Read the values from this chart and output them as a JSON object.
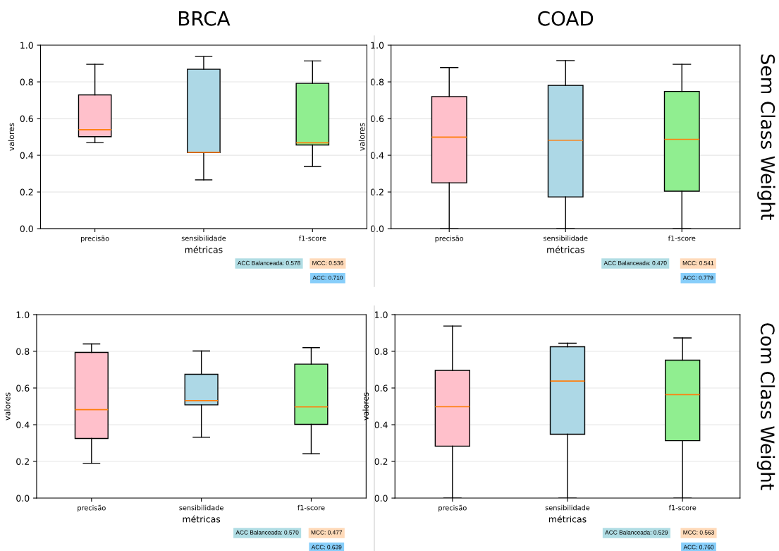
{
  "chart_data": [
    {
      "type": "box",
      "title": "BRCA",
      "xlabel": "métricas",
      "ylabel": "valores",
      "categories": [
        "precisão",
        "sensibilidade",
        "f1-score"
      ],
      "colors": [
        "#ffc0cb",
        "#add8e6",
        "#90ee90"
      ],
      "boxes": [
        {
          "low": 0.469,
          "q1": 0.501,
          "median": 0.539,
          "q3": 0.729,
          "high": 0.896
        },
        {
          "low": 0.266,
          "q1": 0.415,
          "median": 0.416,
          "q3": 0.869,
          "high": 0.938
        },
        {
          "low": 0.34,
          "q1": 0.456,
          "median": 0.468,
          "q3": 0.792,
          "high": 0.914
        }
      ],
      "ylim": [
        0,
        1
      ],
      "yticks": [
        {
          "value": 0,
          "label": "0.0"
        },
        {
          "value": 0.2,
          "label": "0.2"
        },
        {
          "value": 0.4,
          "label": "0.4"
        },
        {
          "value": 0.6,
          "label": "0.6"
        },
        {
          "value": 0.8,
          "label": "0.8"
        },
        {
          "value": 1,
          "label": "1.0"
        }
      ],
      "grid": "y",
      "annotations": [
        "ACC Balanceada: 0.578",
        "MCC: 0.536",
        "ACC: 0.710"
      ]
    },
    {
      "type": "box",
      "title": "COAD",
      "xlabel": "métricas",
      "ylabel": "valores",
      "categories": [
        "precisão",
        "sensibilidade",
        "f1-score"
      ],
      "colors": [
        "#ffc0cb",
        "#add8e6",
        "#90ee90"
      ],
      "boxes": [
        {
          "low": 0,
          "q1": 0.25,
          "median": 0.499,
          "q3": 0.72,
          "high": 0.878
        },
        {
          "low": 0,
          "q1": 0.173,
          "median": 0.482,
          "q3": 0.781,
          "high": 0.916
        },
        {
          "low": 0,
          "q1": 0.204,
          "median": 0.487,
          "q3": 0.748,
          "high": 0.896
        }
      ],
      "ylim": [
        0,
        1
      ],
      "yticks": [
        {
          "value": 0,
          "label": "0.0"
        },
        {
          "value": 0.2,
          "label": "0.2"
        },
        {
          "value": 0.4,
          "label": "0.4"
        },
        {
          "value": 0.6,
          "label": "0.6"
        },
        {
          "value": 0.8,
          "label": "0.8"
        },
        {
          "value": 1,
          "label": "1.0"
        }
      ],
      "grid": "y",
      "annotations": [
        "ACC Balanceada: 0.470",
        "MCC: 0.541",
        "ACC: 0.779",
        "Sem Class Weight"
      ]
    },
    {
      "type": "box",
      "xlabel": "métricas",
      "ylabel": "valores",
      "categories": [
        "precisão",
        "sensibilidade",
        "f1-score"
      ],
      "colors": [
        "#ffc0cb",
        "#add8e6",
        "#90ee90"
      ],
      "boxes": [
        {
          "low": 0.19,
          "q1": 0.325,
          "median": 0.482,
          "q3": 0.794,
          "high": 0.84
        },
        {
          "low": 0.332,
          "q1": 0.508,
          "median": 0.531,
          "q3": 0.675,
          "high": 0.802
        },
        {
          "low": 0.242,
          "q1": 0.402,
          "median": 0.497,
          "q3": 0.73,
          "high": 0.82
        }
      ],
      "ylim": [
        0,
        1
      ],
      "yticks": [
        {
          "value": 0,
          "label": "0.0"
        },
        {
          "value": 0.2,
          "label": "0.2"
        },
        {
          "value": 0.4,
          "label": "0.4"
        },
        {
          "value": 0.6,
          "label": "0.6"
        },
        {
          "value": 0.8,
          "label": "0.8"
        },
        {
          "value": 1,
          "label": "1.0"
        }
      ],
      "grid": "y",
      "annotations": [
        "ACC Balanceada: 0.570",
        "MCC: 0.477",
        "ACC: 0.639"
      ]
    },
    {
      "type": "box",
      "xlabel": "métricas",
      "ylabel": "valores",
      "categories": [
        "precisão",
        "sensibilidade",
        "f1-score"
      ],
      "colors": [
        "#ffc0cb",
        "#add8e6",
        "#90ee90"
      ],
      "boxes": [
        {
          "low": 0,
          "q1": 0.283,
          "median": 0.498,
          "q3": 0.696,
          "high": 0.938
        },
        {
          "low": 0,
          "q1": 0.348,
          "median": 0.638,
          "q3": 0.825,
          "high": 0.844
        },
        {
          "low": 0,
          "q1": 0.313,
          "median": 0.564,
          "q3": 0.752,
          "high": 0.873
        }
      ],
      "ylim": [
        0,
        1
      ],
      "yticks": [
        {
          "value": 0,
          "label": "0.0"
        },
        {
          "value": 0.2,
          "label": "0.2"
        },
        {
          "value": 0.4,
          "label": "0.4"
        },
        {
          "value": 0.6,
          "label": "0.6"
        },
        {
          "value": 0.8,
          "label": "0.8"
        },
        {
          "value": 1,
          "label": "1.0"
        }
      ],
      "grid": "y",
      "annotations": [
        "ACC Balanceada: 0.529",
        "MCC: 0.563",
        "ACC: 0.760",
        "Com Class Weight"
      ]
    }
  ]
}
